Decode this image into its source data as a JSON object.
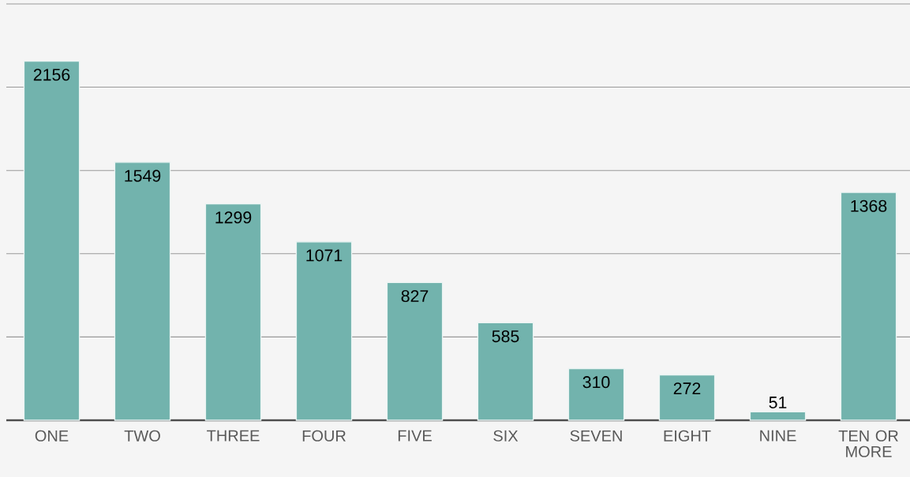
{
  "chart_data": {
    "type": "bar",
    "categories": [
      "ONE",
      "TWO",
      "THREE",
      "FOUR",
      "FIVE",
      "SIX",
      "SEVEN",
      "EIGHT",
      "NINE",
      "TEN OR MORE"
    ],
    "values": [
      2156,
      1549,
      1299,
      1071,
      827,
      585,
      310,
      272,
      51,
      1368
    ],
    "color": "#72b3ad",
    "ylim": [
      0,
      2500
    ],
    "yticks": [
      {
        "value": 0,
        "label": null
      },
      {
        "value": 500,
        "label": null
      },
      {
        "value": 1000,
        "label": null
      },
      {
        "value": 1500,
        "label": null
      },
      {
        "value": 2000,
        "label": null
      },
      {
        "value": 2500,
        "label": null
      }
    ],
    "grid": "y",
    "data_labels": true,
    "tick_labels": "x"
  }
}
